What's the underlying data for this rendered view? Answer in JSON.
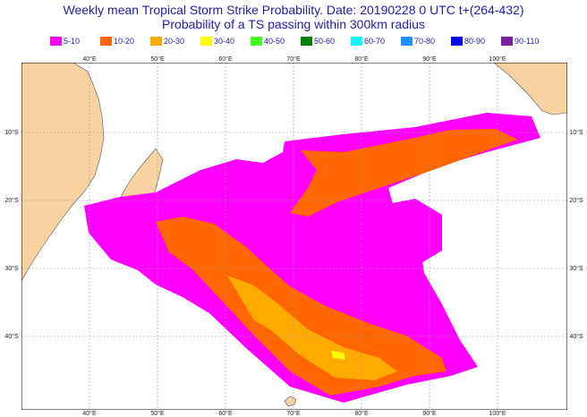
{
  "header": {
    "title_line1": "Weekly mean Tropical Storm Strike Probability. Date: 20190228  0 UTC   t+(264-432)",
    "title_line2": "Probability of a TS passing within  300km radius"
  },
  "legend": [
    {
      "label": "5-10",
      "color": "#ff00ff"
    },
    {
      "label": "10-20",
      "color": "#ff6600"
    },
    {
      "label": "20-30",
      "color": "#ffaa00"
    },
    {
      "label": "30-40",
      "color": "#ffff00"
    },
    {
      "label": "40-50",
      "color": "#44ff22"
    },
    {
      "label": "50-60",
      "color": "#008000"
    },
    {
      "label": "60-70",
      "color": "#00ffff"
    },
    {
      "label": "70-80",
      "color": "#1e90ff"
    },
    {
      "label": "80-90",
      "color": "#0000ff"
    },
    {
      "label": "90-110",
      "color": "#7b1fa2"
    }
  ],
  "map": {
    "land_color": "#f8d2a0",
    "lon_ticks": [
      "40°E",
      "50°E",
      "60°E",
      "70°E",
      "80°E",
      "90°E",
      "100°E"
    ],
    "lat_ticks": [
      "10°S",
      "20°S",
      "30°S",
      "40°S"
    ]
  }
}
